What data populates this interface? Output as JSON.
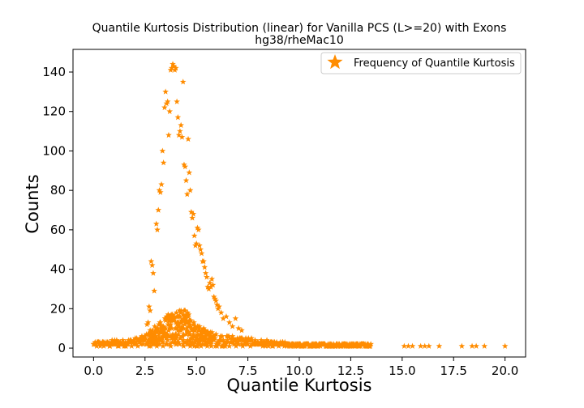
{
  "chart_data": {
    "type": "scatter",
    "title_line1": "Quantile Kurtosis Distribution (linear) for Vanilla PCS (L>=20) with Exons",
    "title_line2": "hg38/rheMac10",
    "xlabel": "Quantile Kurtosis",
    "ylabel": "Counts",
    "xlim": [
      -1.0,
      21.0
    ],
    "ylim": [
      -4.5,
      151.5
    ],
    "xticks": [
      0.0,
      2.5,
      5.0,
      7.5,
      10.0,
      12.5,
      15.0,
      17.5,
      20.0
    ],
    "xtick_labels": [
      "0.0",
      "2.5",
      "5.0",
      "7.5",
      "10.0",
      "12.5",
      "15.0",
      "17.5",
      "20.0"
    ],
    "yticks": [
      0,
      20,
      40,
      60,
      80,
      100,
      120,
      140
    ],
    "ytick_labels": [
      "0",
      "20",
      "40",
      "60",
      "80",
      "100",
      "120",
      "140"
    ],
    "grid": false,
    "legend": {
      "position": "top-right",
      "entries": [
        "Frequency of Quantile Kurtosis"
      ]
    },
    "marker_color": "#ff8c00",
    "marker": "star",
    "series": [
      {
        "name": "Frequency of Quantile Kurtosis",
        "peak_points": [
          {
            "x": 2.8,
            "y": 44
          },
          {
            "x": 2.85,
            "y": 42
          },
          {
            "x": 2.9,
            "y": 38
          },
          {
            "x": 2.95,
            "y": 29
          },
          {
            "x": 2.7,
            "y": 21
          },
          {
            "x": 2.75,
            "y": 19
          },
          {
            "x": 2.65,
            "y": 13
          },
          {
            "x": 2.6,
            "y": 12
          },
          {
            "x": 3.05,
            "y": 63
          },
          {
            "x": 3.1,
            "y": 60
          },
          {
            "x": 3.15,
            "y": 70
          },
          {
            "x": 3.2,
            "y": 80
          },
          {
            "x": 3.25,
            "y": 79
          },
          {
            "x": 3.3,
            "y": 83
          },
          {
            "x": 3.35,
            "y": 100
          },
          {
            "x": 3.4,
            "y": 94
          },
          {
            "x": 3.45,
            "y": 122
          },
          {
            "x": 3.5,
            "y": 130
          },
          {
            "x": 3.55,
            "y": 124
          },
          {
            "x": 3.6,
            "y": 125
          },
          {
            "x": 3.65,
            "y": 108
          },
          {
            "x": 3.7,
            "y": 120
          },
          {
            "x": 3.75,
            "y": 141
          },
          {
            "x": 3.8,
            "y": 142
          },
          {
            "x": 3.85,
            "y": 144
          },
          {
            "x": 3.9,
            "y": 143
          },
          {
            "x": 3.95,
            "y": 141
          },
          {
            "x": 4.0,
            "y": 142
          },
          {
            "x": 4.05,
            "y": 125
          },
          {
            "x": 4.1,
            "y": 117
          },
          {
            "x": 4.15,
            "y": 108
          },
          {
            "x": 4.2,
            "y": 110
          },
          {
            "x": 4.25,
            "y": 113
          },
          {
            "x": 4.3,
            "y": 107
          },
          {
            "x": 4.35,
            "y": 135
          },
          {
            "x": 4.4,
            "y": 93
          },
          {
            "x": 4.45,
            "y": 92
          },
          {
            "x": 4.5,
            "y": 85
          },
          {
            "x": 4.55,
            "y": 78
          },
          {
            "x": 4.6,
            "y": 106
          },
          {
            "x": 4.65,
            "y": 89
          },
          {
            "x": 4.7,
            "y": 80
          },
          {
            "x": 4.75,
            "y": 69
          },
          {
            "x": 4.8,
            "y": 66
          },
          {
            "x": 4.85,
            "y": 68
          },
          {
            "x": 4.9,
            "y": 57
          },
          {
            "x": 4.95,
            "y": 52
          },
          {
            "x": 5.0,
            "y": 53
          },
          {
            "x": 5.05,
            "y": 61
          },
          {
            "x": 5.1,
            "y": 60
          },
          {
            "x": 5.15,
            "y": 52
          },
          {
            "x": 5.2,
            "y": 50
          },
          {
            "x": 5.25,
            "y": 48
          },
          {
            "x": 5.3,
            "y": 44
          },
          {
            "x": 5.35,
            "y": 44
          },
          {
            "x": 5.4,
            "y": 41
          },
          {
            "x": 5.45,
            "y": 38
          },
          {
            "x": 5.5,
            "y": 36
          },
          {
            "x": 5.55,
            "y": 31
          },
          {
            "x": 5.6,
            "y": 30
          },
          {
            "x": 5.65,
            "y": 33
          },
          {
            "x": 5.7,
            "y": 31
          },
          {
            "x": 5.75,
            "y": 35
          },
          {
            "x": 5.8,
            "y": 32
          },
          {
            "x": 5.85,
            "y": 26
          },
          {
            "x": 5.9,
            "y": 25
          },
          {
            "x": 5.95,
            "y": 24
          },
          {
            "x": 6.0,
            "y": 22
          },
          {
            "x": 6.05,
            "y": 20
          },
          {
            "x": 6.1,
            "y": 21
          },
          {
            "x": 6.2,
            "y": 18
          },
          {
            "x": 6.3,
            "y": 15
          },
          {
            "x": 6.45,
            "y": 16
          },
          {
            "x": 6.6,
            "y": 13
          },
          {
            "x": 6.75,
            "y": 11
          },
          {
            "x": 6.9,
            "y": 15
          },
          {
            "x": 7.05,
            "y": 10
          },
          {
            "x": 7.2,
            "y": 9
          }
        ],
        "sparse_tail_points": [
          {
            "x": 13.3,
            "y": 2
          },
          {
            "x": 15.1,
            "y": 1
          },
          {
            "x": 15.3,
            "y": 1
          },
          {
            "x": 15.5,
            "y": 1
          },
          {
            "x": 15.9,
            "y": 1
          },
          {
            "x": 16.1,
            "y": 1
          },
          {
            "x": 16.3,
            "y": 1
          },
          {
            "x": 16.8,
            "y": 1
          },
          {
            "x": 17.9,
            "y": 1
          },
          {
            "x": 18.4,
            "y": 1
          },
          {
            "x": 18.6,
            "y": 1
          },
          {
            "x": 19.0,
            "y": 1
          },
          {
            "x": 20.0,
            "y": 1
          }
        ],
        "dense_region": {
          "x_range": [
            0.0,
            13.5
          ],
          "y_envelope": [
            {
              "x": 0.0,
              "y": 3
            },
            {
              "x": 1.0,
              "y": 4
            },
            {
              "x": 2.0,
              "y": 5
            },
            {
              "x": 2.5,
              "y": 7
            },
            {
              "x": 3.0,
              "y": 11
            },
            {
              "x": 3.5,
              "y": 16
            },
            {
              "x": 4.0,
              "y": 20
            },
            {
              "x": 4.5,
              "y": 19
            },
            {
              "x": 5.0,
              "y": 12
            },
            {
              "x": 5.5,
              "y": 9
            },
            {
              "x": 6.0,
              "y": 7
            },
            {
              "x": 7.0,
              "y": 6
            },
            {
              "x": 8.0,
              "y": 4
            },
            {
              "x": 9.0,
              "y": 3
            },
            {
              "x": 10.0,
              "y": 2
            },
            {
              "x": 13.5,
              "y": 2
            }
          ]
        }
      }
    ]
  }
}
